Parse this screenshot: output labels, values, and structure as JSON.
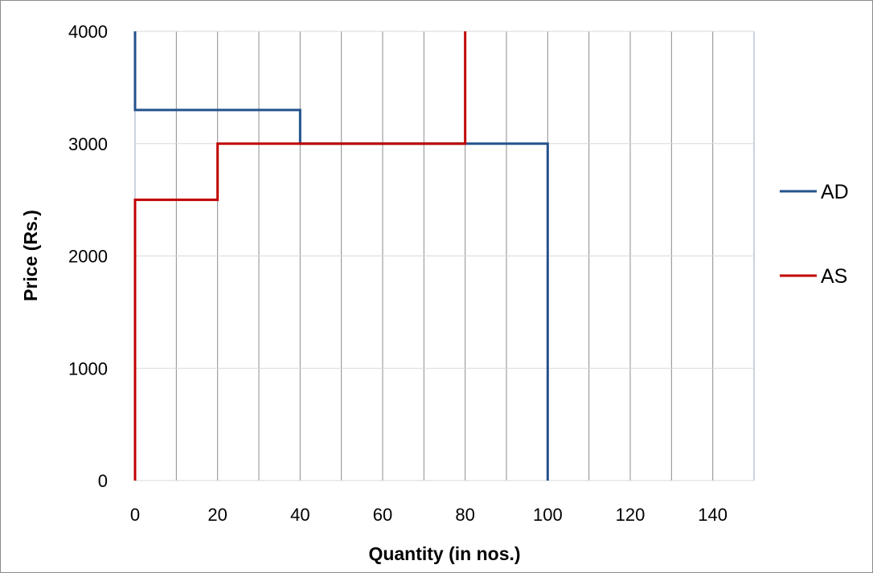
{
  "chart_data": {
    "type": "line",
    "title": "",
    "xlabel": "Quantity (in nos.)",
    "ylabel": "Price (Rs.)",
    "xlim": [
      0,
      150
    ],
    "ylim": [
      0,
      4000
    ],
    "x_ticks": [
      0,
      20,
      40,
      60,
      80,
      100,
      120,
      140
    ],
    "y_ticks": [
      0,
      1000,
      2000,
      3000,
      4000
    ],
    "x_tick_labels": [
      "0",
      "20",
      "40",
      "60",
      "80",
      "100",
      "120",
      "140"
    ],
    "y_tick_labels": [
      "0",
      "1000",
      "2000",
      "3000",
      "4000"
    ],
    "grid": true,
    "legend_position": "right",
    "series": [
      {
        "name": "AD",
        "color": "#24528e",
        "points": [
          [
            0,
            4000
          ],
          [
            0,
            3300
          ],
          [
            40,
            3300
          ],
          [
            40,
            3000
          ],
          [
            100,
            3000
          ],
          [
            100,
            0
          ]
        ]
      },
      {
        "name": "AS",
        "color": "#c00000",
        "points": [
          [
            0,
            0
          ],
          [
            0,
            2500
          ],
          [
            20,
            2500
          ],
          [
            20,
            3000
          ],
          [
            80,
            3000
          ],
          [
            80,
            4000
          ]
        ]
      }
    ]
  }
}
